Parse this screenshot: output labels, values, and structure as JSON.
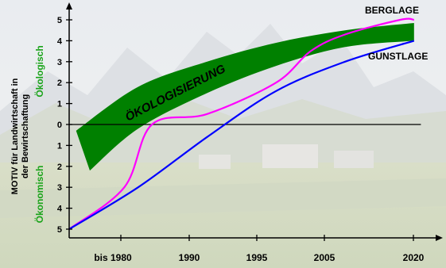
{
  "chart_data": {
    "type": "line",
    "categories": [
      "bis 1980",
      "1990",
      "1995",
      "2005",
      "2020"
    ],
    "yaxis": {
      "range": [
        -5,
        5
      ],
      "ticks": [
        5,
        4,
        3,
        2,
        1,
        0,
        1,
        2,
        3,
        4,
        5
      ],
      "label_main": "MOTIV für Landwirtschaft in",
      "label_sub": "der Bewirtschaftung",
      "label_top": "Ökologisch",
      "label_bottom": "Ökonomisch"
    },
    "band_label": "ÖKOLOGISIERUNG",
    "series": [
      {
        "name": "BERGLAGE",
        "color": "#ff00ff",
        "points": [
          [
            0,
            -5
          ],
          [
            0.8,
            -3
          ],
          [
            1.2,
            0
          ],
          [
            2.0,
            0.5
          ],
          [
            3.0,
            2.0
          ],
          [
            3.5,
            3.5
          ],
          [
            4.0,
            4.3
          ],
          [
            4.8,
            5.0
          ],
          [
            5.0,
            5.0
          ]
        ]
      },
      {
        "name": "GUNSTLAGE",
        "color": "#0000ff",
        "points": [
          [
            0,
            -5
          ],
          [
            1.0,
            -3
          ],
          [
            2.0,
            -0.6
          ],
          [
            3.0,
            1.6
          ],
          [
            4.0,
            3.0
          ],
          [
            5.0,
            4.0
          ]
        ]
      }
    ],
    "band": {
      "color": "#008000",
      "upper": [
        [
          0.1,
          -0.3
        ],
        [
          1.0,
          1.8
        ],
        [
          2.0,
          3.0
        ],
        [
          3.0,
          3.9
        ],
        [
          4.0,
          4.5
        ],
        [
          5.0,
          4.85
        ]
      ],
      "lower": [
        [
          0.3,
          -2.2
        ],
        [
          1.0,
          -0.2
        ],
        [
          2.0,
          1.5
        ],
        [
          3.0,
          2.8
        ],
        [
          4.0,
          3.7
        ],
        [
          5.0,
          4.0
        ]
      ]
    },
    "colors": {
      "axis": "#000000",
      "green_text": "#1aa31a"
    }
  }
}
